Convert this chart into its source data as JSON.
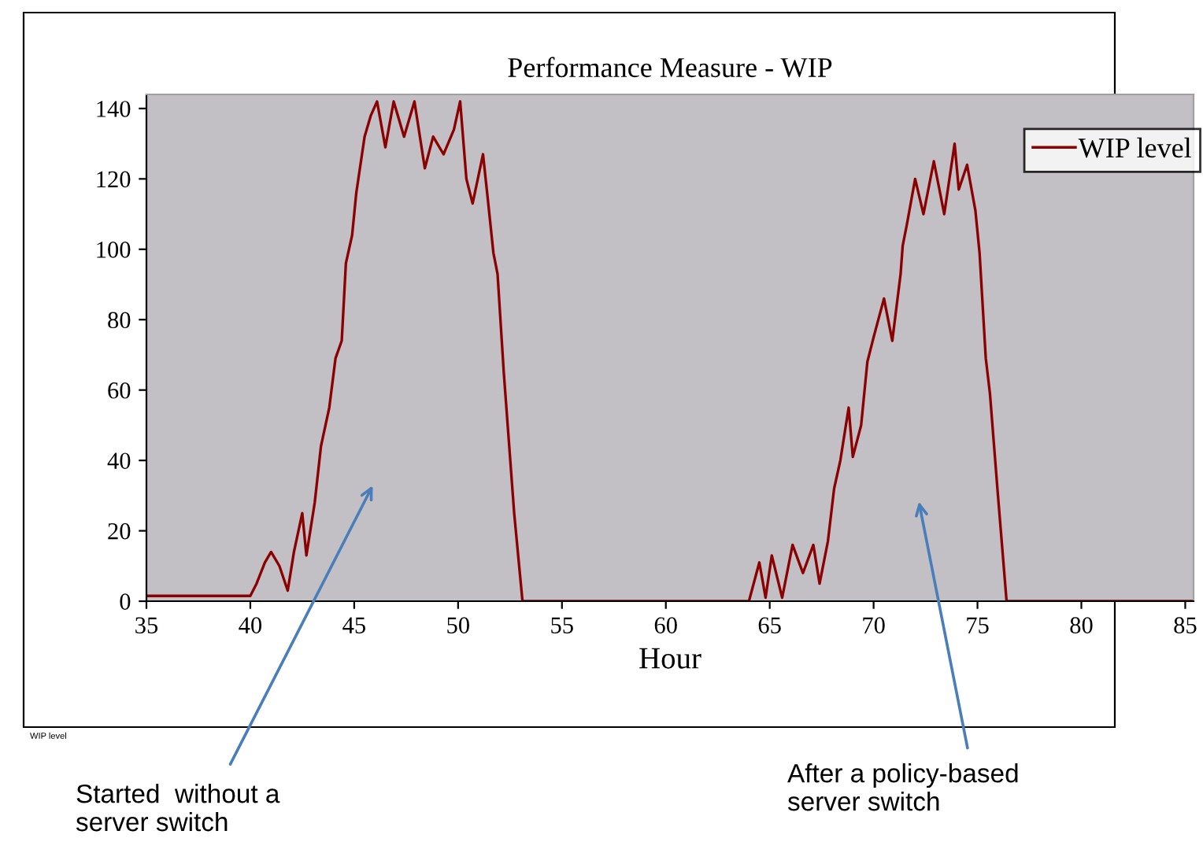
{
  "chart_data": {
    "type": "line",
    "title": "Performance Measure - WIP",
    "xlabel": "Hour",
    "x": [
      35,
      40.0,
      40.3,
      40.7,
      41.0,
      41.4,
      41.8,
      42.1,
      42.5,
      42.7,
      43.1,
      43.4,
      43.8,
      44.1,
      44.4,
      44.6,
      44.9,
      45.1,
      45.5,
      45.8,
      46.1,
      46.5,
      46.9,
      47.4,
      47.9,
      48.4,
      48.8,
      49.3,
      49.8,
      50.1,
      50.4,
      50.7,
      51.2,
      51.4,
      51.7,
      51.9,
      52.2,
      52.7,
      53.1,
      64.0,
      64.5,
      64.8,
      65.1,
      65.6,
      66.1,
      66.6,
      67.1,
      67.4,
      67.8,
      68.1,
      68.4,
      68.8,
      69.0,
      69.4,
      69.7,
      70.0,
      70.5,
      70.9,
      71.3,
      71.4,
      71.6,
      72.0,
      72.4,
      72.9,
      73.4,
      73.9,
      74.1,
      74.5,
      74.9,
      75.1,
      75.4,
      75.6,
      76.0,
      76.4,
      85.4
    ],
    "series": [
      {
        "name": "WIP level",
        "color": "#8b0000",
        "values": [
          1.5,
          1.5,
          5,
          11,
          14,
          10,
          3,
          14,
          25,
          13,
          28,
          44,
          55,
          69,
          74,
          96,
          104,
          116,
          132,
          138,
          142,
          129,
          142,
          132,
          142,
          123,
          132,
          127,
          134,
          142,
          120,
          113,
          127,
          116,
          99,
          93,
          65,
          25,
          0,
          0,
          11,
          1,
          13,
          1,
          16,
          8,
          16,
          5,
          17,
          32,
          40,
          55,
          41,
          50,
          68,
          75,
          86,
          74,
          93,
          101,
          107,
          120,
          110,
          125,
          110,
          130,
          117,
          124,
          111,
          99,
          69,
          59,
          29,
          0,
          0
        ]
      }
    ],
    "xlim": [
      35,
      85.4
    ],
    "ylim": [
      0,
      144
    ],
    "xticks": [
      35,
      40,
      45,
      50,
      55,
      60,
      65,
      70,
      75,
      80,
      85
    ],
    "yticks": [
      0,
      20,
      40,
      60,
      80,
      100,
      120,
      140
    ],
    "grid": false,
    "legend": "top right",
    "marker": "none",
    "line_style": "solid",
    "annotations": [
      "Started  without a\nserver switch",
      "After a policy-based\nserver switch",
      "WIP level"
    ]
  }
}
